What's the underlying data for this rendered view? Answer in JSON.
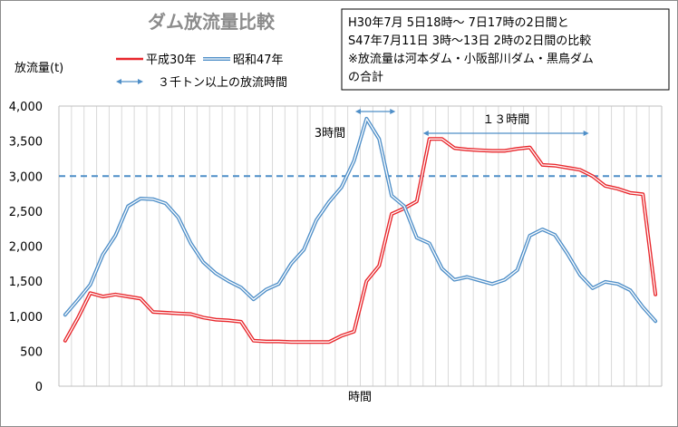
{
  "chart_data": {
    "type": "line",
    "title": "ダム放流量比較",
    "ylabel": "放流量(t)",
    "xlabel": "時間",
    "ylim": [
      0,
      4000
    ],
    "yticks": [
      0,
      500,
      1000,
      1500,
      2000,
      2500,
      3000,
      3500,
      4000
    ],
    "ytick_labels": [
      "0",
      "500",
      "1,000",
      "1,500",
      "2,000",
      "2,500",
      "3,000",
      "3,500",
      "4,000"
    ],
    "grid": "vertical",
    "legend_position": "top-left",
    "threshold": {
      "value": 3000,
      "color": "#4f8fc8"
    },
    "note_lines": [
      "H30年7月 5日18時～ 7日17時の2日間と",
      "S47年7月11日 3時～13日 2時の2日間の比較",
      "※放流量は河本ダム・小阪部川ダム・黒鳥ダム",
      "の合計"
    ],
    "legend_arrow_label": "３千トン以上の放流時間",
    "series": [
      {
        "name": "平成30年",
        "color": "#e8262b",
        "values": [
          650,
          970,
          1330,
          1280,
          1310,
          1280,
          1250,
          1060,
          1050,
          1040,
          1030,
          980,
          950,
          940,
          920,
          650,
          640,
          640,
          630,
          630,
          630,
          630,
          720,
          780,
          1500,
          1720,
          2460,
          2540,
          2640,
          3530,
          3530,
          3400,
          3380,
          3370,
          3360,
          3360,
          3390,
          3410,
          3160,
          3150,
          3120,
          3090,
          3000,
          2860,
          2820,
          2760,
          2740,
          1310
        ]
      },
      {
        "name": "昭和47年",
        "color": "#4f8fc8",
        "values": [
          1020,
          1230,
          1450,
          1880,
          2150,
          2570,
          2680,
          2670,
          2610,
          2410,
          2040,
          1770,
          1610,
          1500,
          1410,
          1240,
          1380,
          1460,
          1750,
          1950,
          2370,
          2630,
          2840,
          3220,
          3820,
          3530,
          2720,
          2570,
          2120,
          2040,
          1680,
          1520,
          1560,
          1510,
          1460,
          1520,
          1660,
          2150,
          2240,
          2160,
          1890,
          1590,
          1400,
          1490,
          1460,
          1370,
          1130,
          930
        ]
      }
    ],
    "spans": [
      {
        "label": "3時間",
        "start": 23.6,
        "end": 26.8
      },
      {
        "label": "１３時間",
        "start": 29.0,
        "end": 42.2
      }
    ]
  }
}
